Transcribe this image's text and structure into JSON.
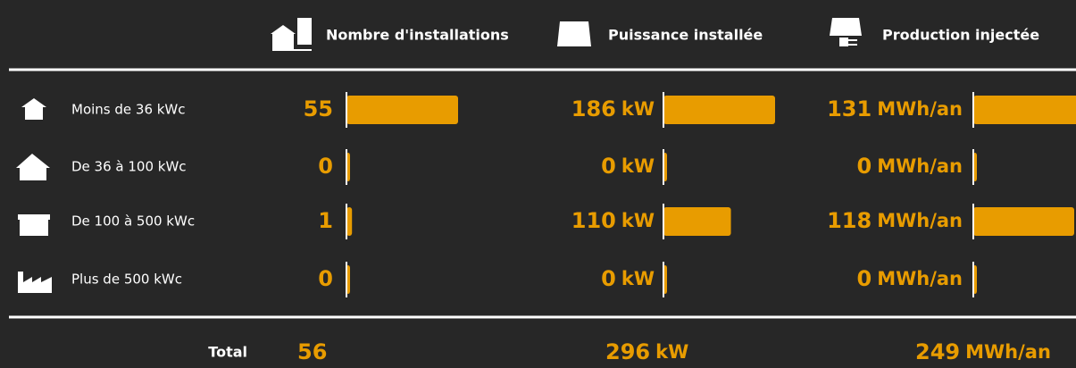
{
  "columns": [
    {
      "title": "Nombre d'installations"
    },
    {
      "title": "Puissance installée",
      "unit": "kW"
    },
    {
      "title": "Production injectée",
      "unit": "MWh/an"
    }
  ],
  "rows": [
    {
      "label": "Moins de 36 kWc",
      "values": [
        55,
        186,
        131
      ]
    },
    {
      "label": "De 36 à 100 kWc",
      "values": [
        0,
        0,
        0
      ]
    },
    {
      "label": "De 100 à 500 kWc",
      "values": [
        1,
        110,
        118
      ]
    },
    {
      "label": "Plus de 500 kWc",
      "values": [
        0,
        0,
        0
      ]
    }
  ],
  "total": {
    "label": "Total",
    "values": [
      56,
      296,
      249
    ]
  }
}
